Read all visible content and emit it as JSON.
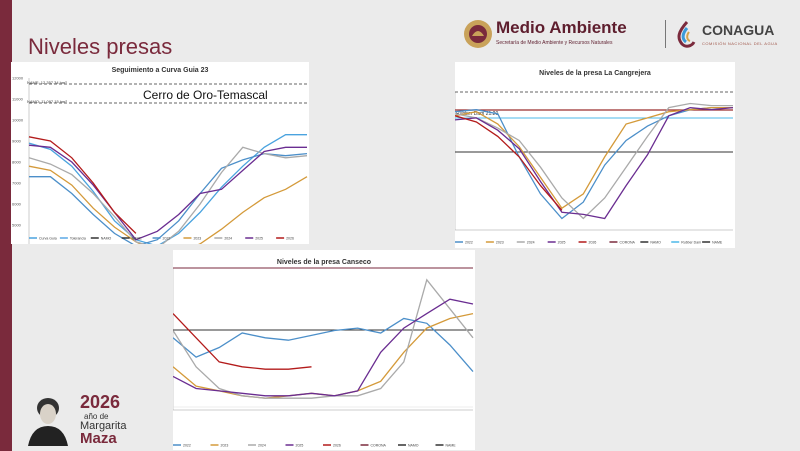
{
  "page": {
    "title": "Niveles presas"
  },
  "header": {
    "medio_ambiente": "Medio Ambiente",
    "medio_ambiente_sub": "Secretaría de Medio Ambiente y Recursos Naturales",
    "conagua": "CONAGUA",
    "conagua_sub": "COMISIÓN NACIONAL DEL AGUA"
  },
  "anniversary": {
    "year": "2026",
    "anio": "año de",
    "name_first": "Margarita",
    "name_last": "Maza"
  },
  "colors": {
    "brand": "#7a2a3c",
    "background": "#ebebeb"
  },
  "charts": [
    {
      "id": "cerro",
      "title": "Seguimiento a Curva Guia 23",
      "overlay_label": "Cerro de Oro-Temascal",
      "namo_label": "NAME: 12,357.34  hm³",
      "namo2_label": "NAMO: 11,097.15 hm³",
      "yticks": [
        "12000",
        "11000",
        "10000",
        "9000",
        "8000",
        "7000",
        "6000",
        "5000",
        "4000",
        "3000"
      ],
      "legend": [
        "Curva Guia",
        "Tolerancia",
        "NAMO",
        "NAME",
        "2022",
        "2023",
        "2024",
        "2025",
        "2026"
      ]
    },
    {
      "id": "cangrejera",
      "title": "Niveles de la presa La Cangrejera",
      "rubber_label": "Rubber Dam  21.20",
      "legend": [
        "2022",
        "2023",
        "2024",
        "2025",
        "2026",
        "CORONA",
        "NAMO",
        "Rubber Dam",
        "NAME"
      ]
    },
    {
      "id": "canseco",
      "title": "Niveles de la presa Canseco",
      "legend": [
        "2022",
        "2023",
        "2024",
        "2025",
        "2026",
        "CORONA",
        "NAMO",
        "NAME"
      ]
    }
  ],
  "chart_data": [
    {
      "type": "line",
      "title": "Seguimiento a Curva Guia 23",
      "ylim": [
        3000,
        12000
      ],
      "series": [
        {
          "name": "Curva Guia",
          "values": [
            8900,
            8600,
            7800,
            6600,
            5200,
            4300,
            4000,
            4600,
            5600,
            6800,
            7800,
            8700,
            9300,
            9300
          ]
        },
        {
          "name": "2022",
          "values": [
            7300,
            7300,
            6500,
            5500,
            4600,
            4000,
            4300,
            5200,
            6500,
            7700,
            8100,
            8400,
            8300,
            8400
          ]
        },
        {
          "name": "2023",
          "values": [
            7800,
            7600,
            6900,
            5800,
            4900,
            4200,
            3700,
            3700,
            4100,
            4800,
            5600,
            6300,
            6700,
            7300
          ]
        },
        {
          "name": "2024",
          "values": [
            8200,
            7900,
            7400,
            6500,
            5400,
            4200,
            3900,
            4700,
            6000,
            7500,
            8700,
            8400,
            8200,
            8300
          ]
        },
        {
          "name": "2025",
          "values": [
            8800,
            8700,
            8000,
            6900,
            5600,
            4300,
            4700,
            5500,
            6500,
            6700,
            7600,
            8500,
            8700,
            8700
          ]
        },
        {
          "name": "2026",
          "values": [
            9200,
            9000,
            8200,
            7000,
            5600,
            4600
          ]
        }
      ]
    },
    {
      "type": "line",
      "title": "Niveles de la presa La Cangrejera",
      "series": [
        {
          "name": "2022",
          "values": [
            21.2,
            21.3,
            21.1,
            19.0,
            17.2,
            16.0,
            16.8,
            18.6,
            19.8,
            20.5,
            21.0,
            21.3,
            21.4,
            21.4
          ]
        },
        {
          "name": "2023",
          "values": [
            21.0,
            21.2,
            20.6,
            19.5,
            18.0,
            16.5,
            17.2,
            19.0,
            20.6,
            20.9,
            21.2,
            21.3,
            21.4,
            21.4
          ]
        },
        {
          "name": "2024",
          "values": [
            21.1,
            20.9,
            20.4,
            19.8,
            18.5,
            17.0,
            16.0,
            17.0,
            18.5,
            20.0,
            21.4,
            21.6,
            21.5,
            21.5
          ]
        },
        {
          "name": "2025",
          "values": [
            20.8,
            20.9,
            20.3,
            19.4,
            17.8,
            16.3,
            16.2,
            16.0,
            17.6,
            19.1,
            21.0,
            21.4,
            21.3,
            21.4
          ]
        },
        {
          "name": "2026",
          "values": [
            21.0,
            20.7,
            20.0,
            19.0,
            17.6,
            16.4
          ]
        }
      ]
    },
    {
      "type": "line",
      "title": "Niveles de la presa Canseco",
      "series": [
        {
          "name": "2022",
          "values": [
            9.0,
            8.2,
            8.6,
            9.2,
            9.0,
            8.9,
            9.1,
            9.3,
            9.4,
            9.2,
            9.8,
            9.6,
            8.7,
            7.6
          ]
        },
        {
          "name": "2023",
          "values": [
            7.8,
            7.0,
            6.8,
            6.6,
            6.5,
            6.6,
            6.7,
            6.6,
            6.8,
            7.2,
            8.4,
            9.4,
            9.8,
            10.0
          ]
        },
        {
          "name": "2024",
          "values": [
            9.3,
            7.8,
            6.9,
            6.6,
            6.5,
            6.5,
            6.5,
            6.6,
            6.6,
            6.9,
            8.0,
            11.4,
            10.2,
            9.0
          ]
        },
        {
          "name": "2025",
          "values": [
            7.4,
            6.9,
            6.8,
            6.7,
            6.6,
            6.6,
            6.7,
            6.6,
            6.8,
            8.4,
            9.4,
            10.0,
            10.6,
            10.4
          ]
        },
        {
          "name": "2026",
          "values": [
            10.0,
            9.0,
            8.0,
            7.8,
            7.7,
            7.7,
            7.8
          ]
        }
      ]
    }
  ]
}
